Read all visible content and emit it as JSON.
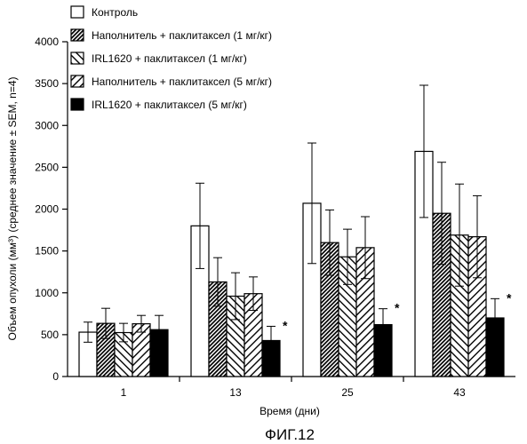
{
  "figure_caption": "ФИГ.12",
  "chart_data": {
    "type": "bar",
    "title": "",
    "xlabel": "Время (дни)",
    "ylabel": "Объем опухоли (мм³) (среднее значение ± SEM, n=4)",
    "ylim": [
      0,
      4000
    ],
    "yticks": [
      0,
      500,
      1000,
      1500,
      2000,
      2500,
      3000,
      3500,
      4000
    ],
    "categories": [
      "1",
      "13",
      "25",
      "43"
    ],
    "series": [
      {
        "name": "Контроль",
        "pattern": "empty",
        "values": [
          530,
          1800,
          2070,
          2690
        ],
        "errors": [
          120,
          510,
          720,
          790
        ]
      },
      {
        "name": "Наполнитель + паклитаксел (1 мг/кг)",
        "pattern": "dense-hatch",
        "values": [
          635,
          1130,
          1600,
          1950
        ],
        "errors": [
          180,
          290,
          390,
          610
        ]
      },
      {
        "name": "IRL1620 + паклитаксел (1 мг/кг)",
        "pattern": "backslash-hatch",
        "values": [
          525,
          960,
          1430,
          1690
        ],
        "errors": [
          110,
          280,
          330,
          610
        ]
      },
      {
        "name": "Наполнитель + паклитаксел (5 мг/кг)",
        "pattern": "slash-hatch",
        "values": [
          630,
          990,
          1540,
          1670
        ],
        "errors": [
          100,
          200,
          370,
          490
        ]
      },
      {
        "name": "IRL1620 + паклитаксел (5 мг/кг)",
        "pattern": "solid",
        "values": [
          560,
          430,
          620,
          700
        ],
        "errors": [
          170,
          170,
          190,
          230
        ]
      }
    ],
    "significance_marks": [
      {
        "series": 4,
        "category": 1,
        "label": "*"
      },
      {
        "series": 4,
        "category": 2,
        "label": "*"
      },
      {
        "series": 4,
        "category": 3,
        "label": "*"
      }
    ],
    "legend_position": "top",
    "grid": false
  }
}
